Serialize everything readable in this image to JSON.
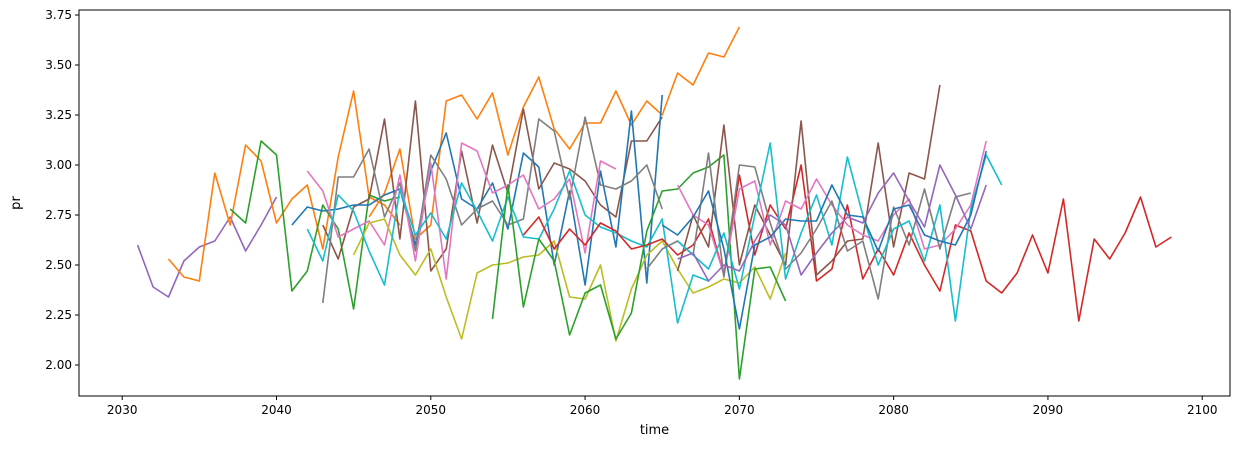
{
  "chart_data": {
    "type": "line",
    "title": "",
    "xlabel": "time",
    "ylabel": "pr",
    "xlim": [
      2027.2,
      2101.8
    ],
    "ylim": [
      1.845,
      3.775
    ],
    "x_ticks": [
      2030,
      2040,
      2050,
      2060,
      2070,
      2080,
      2090,
      2100
    ],
    "y_ticks": [
      2.0,
      2.25,
      2.5,
      2.75,
      3.0,
      3.25,
      3.5,
      3.75
    ],
    "x_tick_labels": [
      "2030",
      "2040",
      "2050",
      "2060",
      "2070",
      "2080",
      "2090",
      "2100"
    ],
    "y_tick_labels": [
      "2.00",
      "2.25",
      "2.50",
      "2.75",
      "3.00",
      "3.25",
      "3.50",
      "3.75"
    ],
    "grid": false,
    "legend": "none",
    "series": [
      {
        "color": "#9467bd",
        "x": [
          2031,
          2032,
          2033,
          2034,
          2035,
          2036,
          2037,
          2038,
          2039,
          2040
        ],
        "values": [
          2.6,
          2.39,
          2.34,
          2.52,
          2.59,
          2.62,
          2.74,
          2.57,
          2.7,
          2.84
        ]
      },
      {
        "color": "#ff7f0e",
        "x": [
          2033,
          2034,
          2035,
          2036,
          2037,
          2038,
          2039,
          2040,
          2041,
          2042,
          2043,
          2044,
          2045,
          2046,
          2047,
          2048
        ],
        "values": [
          2.53,
          2.44,
          2.42,
          2.96,
          2.7,
          3.1,
          3.02,
          2.71,
          2.83,
          2.9,
          2.58,
          3.04,
          3.37,
          2.84,
          2.8,
          2.7
        ]
      },
      {
        "color": "#2ca02c",
        "x": [
          2037,
          2038,
          2039,
          2040,
          2041,
          2042,
          2043,
          2044,
          2045,
          2046,
          2047,
          2048
        ],
        "values": [
          2.78,
          2.71,
          3.12,
          3.05,
          2.37,
          2.47,
          2.8,
          2.68,
          2.28,
          2.85,
          2.82,
          2.84
        ]
      },
      {
        "color": "#ff7f0e",
        "x": [
          2046,
          2047,
          2048,
          2049,
          2050,
          2051,
          2052,
          2053,
          2054,
          2055,
          2056,
          2057,
          2058,
          2059,
          2060,
          2061,
          2062,
          2063,
          2064,
          2065,
          2066,
          2067,
          2068,
          2069,
          2070
        ],
        "values": [
          2.74,
          2.86,
          3.08,
          2.63,
          2.7,
          3.32,
          3.35,
          3.23,
          3.36,
          3.05,
          3.29,
          3.44,
          3.18,
          3.08,
          3.21,
          3.21,
          3.37,
          3.2,
          3.32,
          3.25,
          3.46,
          3.4,
          3.56,
          3.54,
          3.69
        ]
      },
      {
        "color": "#8c564b",
        "x": [
          2043,
          2044,
          2045,
          2046,
          2047,
          2048,
          2049,
          2050,
          2051,
          2052,
          2053,
          2054,
          2055,
          2056,
          2057,
          2058,
          2059,
          2060,
          2061,
          2062,
          2063,
          2064,
          2065
        ],
        "values": [
          2.7,
          2.53,
          2.79,
          2.83,
          3.23,
          2.63,
          3.32,
          2.47,
          2.58,
          3.07,
          2.71,
          3.1,
          2.86,
          3.28,
          2.88,
          3.01,
          2.98,
          2.92,
          2.8,
          2.74,
          3.12,
          3.12,
          3.24
        ]
      },
      {
        "color": "#1f77b4",
        "x": [
          2041,
          2042,
          2043,
          2044,
          2045,
          2046,
          2047,
          2048,
          2049,
          2050,
          2051,
          2052,
          2053,
          2054,
          2055,
          2056,
          2057,
          2058,
          2059,
          2060,
          2061,
          2062,
          2063,
          2064,
          2065
        ],
        "values": [
          2.7,
          2.79,
          2.77,
          2.78,
          2.8,
          2.8,
          2.85,
          2.88,
          2.6,
          2.97,
          3.16,
          2.83,
          2.78,
          2.91,
          2.68,
          3.06,
          2.99,
          2.5,
          2.87,
          2.4,
          2.97,
          2.59,
          3.27,
          2.41,
          3.35
        ]
      },
      {
        "color": "#7f7f7f",
        "x": [
          2043,
          2044,
          2045,
          2046,
          2047,
          2048,
          2049,
          2050,
          2051,
          2052,
          2053,
          2054,
          2055,
          2056,
          2057,
          2058,
          2059,
          2060,
          2061,
          2062,
          2063,
          2064,
          2065
        ],
        "values": [
          2.31,
          2.94,
          2.94,
          3.08,
          2.74,
          2.91,
          2.57,
          3.05,
          2.93,
          2.7,
          2.78,
          2.82,
          2.7,
          2.73,
          3.23,
          3.17,
          2.83,
          3.24,
          2.9,
          2.88,
          2.92,
          3.0,
          2.78
        ]
      },
      {
        "color": "#e377c2",
        "x": [
          2042,
          2043,
          2044,
          2045,
          2046,
          2047,
          2048,
          2049,
          2050,
          2051,
          2052,
          2053,
          2054,
          2055,
          2056,
          2057,
          2058,
          2059,
          2060,
          2061,
          2062
        ],
        "values": [
          2.97,
          2.87,
          2.64,
          2.68,
          2.72,
          2.6,
          2.95,
          2.52,
          3.01,
          2.43,
          3.11,
          3.07,
          2.86,
          2.9,
          2.95,
          2.78,
          2.83,
          2.93,
          2.56,
          3.02,
          2.98
        ]
      },
      {
        "color": "#bcbd22",
        "x": [
          2045,
          2046,
          2047,
          2048,
          2049,
          2050,
          2051,
          2052,
          2053,
          2054,
          2055,
          2056,
          2057,
          2058,
          2059,
          2060,
          2061,
          2062,
          2063,
          2064,
          2065,
          2066,
          2067,
          2068,
          2069,
          2070,
          2071,
          2072,
          2073
        ],
        "values": [
          2.55,
          2.71,
          2.73,
          2.55,
          2.45,
          2.58,
          2.34,
          2.13,
          2.46,
          2.5,
          2.51,
          2.54,
          2.55,
          2.62,
          2.34,
          2.33,
          2.5,
          2.12,
          2.38,
          2.55,
          2.62,
          2.48,
          2.36,
          2.39,
          2.43,
          2.41,
          2.49,
          2.33,
          2.56
        ]
      },
      {
        "color": "#17becf",
        "x": [
          2042,
          2043,
          2044,
          2045,
          2046,
          2047,
          2048,
          2049,
          2050,
          2051,
          2052,
          2053,
          2054,
          2055,
          2056,
          2057,
          2058,
          2059,
          2060,
          2061,
          2062,
          2063,
          2064,
          2065,
          2066,
          2067,
          2068
        ],
        "values": [
          2.68,
          2.52,
          2.85,
          2.77,
          2.57,
          2.4,
          2.88,
          2.65,
          2.76,
          2.63,
          2.91,
          2.77,
          2.62,
          2.84,
          2.64,
          2.63,
          2.78,
          2.97,
          2.75,
          2.69,
          2.66,
          2.62,
          2.59,
          2.73,
          2.21,
          2.45,
          2.42
        ]
      },
      {
        "color": "#d62728",
        "x": [
          2056,
          2057,
          2058,
          2059,
          2060,
          2061,
          2062,
          2063,
          2064,
          2065,
          2066,
          2067,
          2068,
          2069,
          2070,
          2071,
          2072,
          2073,
          2074,
          2075,
          2076,
          2077,
          2078,
          2079,
          2080,
          2081,
          2082,
          2083,
          2084,
          2085,
          2086,
          2087,
          2088,
          2089,
          2090,
          2091,
          2092,
          2093,
          2094,
          2095,
          2096,
          2097,
          2098
        ],
        "values": [
          2.65,
          2.74,
          2.58,
          2.68,
          2.6,
          2.71,
          2.67,
          2.58,
          2.6,
          2.63,
          2.55,
          2.6,
          2.73,
          2.45,
          2.95,
          2.55,
          2.8,
          2.68,
          3.0,
          2.42,
          2.48,
          2.8,
          2.43,
          2.58,
          2.45,
          2.66,
          2.5,
          2.37,
          2.7,
          2.67,
          2.42,
          2.36,
          2.46,
          2.65,
          2.46,
          2.83,
          2.22,
          2.63,
          2.53,
          2.66,
          2.84,
          2.59,
          2.64
        ]
      },
      {
        "color": "#2ca02c",
        "x": [
          2054,
          2055,
          2056,
          2057,
          2058,
          2059,
          2060,
          2061,
          2062,
          2063,
          2064,
          2065,
          2066,
          2067,
          2068,
          2069,
          2070,
          2071,
          2072,
          2073
        ],
        "values": [
          2.23,
          2.9,
          2.29,
          2.63,
          2.52,
          2.15,
          2.36,
          2.4,
          2.13,
          2.26,
          2.67,
          2.87,
          2.88,
          2.96,
          2.99,
          3.05,
          1.93,
          2.48,
          2.49,
          2.32
        ]
      },
      {
        "color": "#8c564b",
        "x": [
          2066,
          2067,
          2068,
          2069,
          2070,
          2071,
          2072,
          2073,
          2074,
          2075,
          2076,
          2077,
          2078,
          2079,
          2080,
          2081,
          2082,
          2083
        ],
        "values": [
          2.47,
          2.75,
          2.59,
          3.2,
          2.5,
          2.8,
          2.65,
          2.5,
          3.22,
          2.45,
          2.52,
          2.62,
          2.63,
          3.11,
          2.59,
          2.96,
          2.93,
          3.4
        ]
      },
      {
        "color": "#e377c2",
        "x": [
          2066,
          2067,
          2068,
          2069,
          2070,
          2071,
          2072,
          2073,
          2074,
          2075,
          2076,
          2077,
          2078,
          2079,
          2080,
          2081,
          2082,
          2083,
          2084,
          2085,
          2086
        ],
        "values": [
          2.9,
          2.75,
          2.7,
          2.45,
          2.88,
          2.92,
          2.6,
          2.82,
          2.78,
          2.93,
          2.8,
          2.7,
          2.65,
          2.62,
          2.75,
          2.83,
          2.58,
          2.6,
          2.68,
          2.8,
          3.12
        ]
      },
      {
        "color": "#7f7f7f",
        "x": [
          2064,
          2065,
          2066,
          2067,
          2068,
          2069,
          2070,
          2071,
          2072,
          2073,
          2074,
          2075,
          2076,
          2077,
          2078,
          2079,
          2080,
          2081,
          2082,
          2083,
          2084,
          2085
        ],
        "values": [
          2.48,
          2.58,
          2.62,
          2.55,
          3.06,
          2.44,
          3.0,
          2.99,
          2.71,
          2.48,
          2.56,
          2.68,
          2.82,
          2.57,
          2.62,
          2.33,
          2.79,
          2.6,
          2.88,
          2.58,
          2.84,
          2.86
        ]
      },
      {
        "color": "#17becf",
        "x": [
          2066,
          2067,
          2068,
          2069,
          2070,
          2071,
          2072,
          2073,
          2074,
          2075,
          2076,
          2077,
          2078,
          2079,
          2080,
          2081,
          2082,
          2083,
          2084,
          2085,
          2086,
          2087
        ],
        "values": [
          2.62,
          2.55,
          2.48,
          2.66,
          2.38,
          2.75,
          3.11,
          2.43,
          2.66,
          2.85,
          2.6,
          3.04,
          2.75,
          2.5,
          2.68,
          2.72,
          2.52,
          2.8,
          2.22,
          2.78,
          3.05,
          2.9
        ]
      },
      {
        "color": "#1f77b4",
        "x": [
          2065,
          2066,
          2067,
          2068,
          2069,
          2070,
          2071,
          2072,
          2073,
          2074,
          2075,
          2076,
          2077,
          2078,
          2079,
          2080,
          2081,
          2082,
          2083,
          2084,
          2085,
          2086
        ],
        "values": [
          2.7,
          2.65,
          2.74,
          2.87,
          2.58,
          2.18,
          2.6,
          2.64,
          2.73,
          2.72,
          2.72,
          2.9,
          2.75,
          2.74,
          2.57,
          2.78,
          2.8,
          2.65,
          2.62,
          2.6,
          2.75,
          3.07
        ]
      },
      {
        "color": "#9467bd",
        "x": [
          2066,
          2067,
          2068,
          2069,
          2070,
          2071,
          2072,
          2073,
          2074,
          2075,
          2076,
          2077,
          2078,
          2079,
          2080,
          2081,
          2082,
          2083,
          2084,
          2085,
          2086
        ],
        "values": [
          2.53,
          2.56,
          2.42,
          2.5,
          2.47,
          2.62,
          2.75,
          2.7,
          2.45,
          2.56,
          2.66,
          2.74,
          2.71,
          2.86,
          2.96,
          2.82,
          2.69,
          3.0,
          2.85,
          2.68,
          2.9
        ]
      }
    ]
  }
}
